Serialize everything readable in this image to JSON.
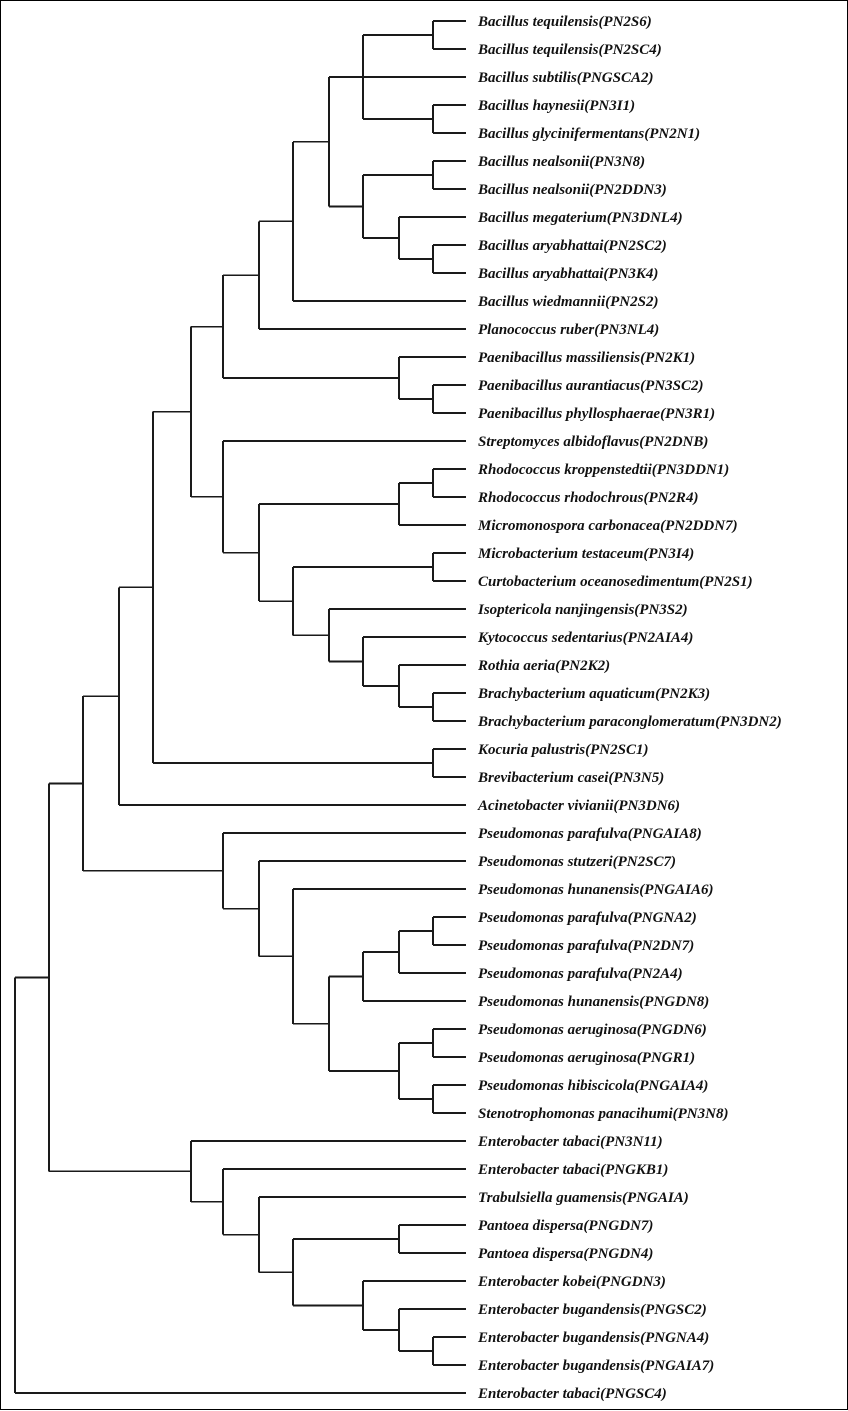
{
  "tree": {
    "leaves": [
      "Bacillus tequilensis(PN2S6)",
      "Bacillus tequilensis(PN2SC4)",
      "Bacillus subtilis(PNGSCA2)",
      "Bacillus haynesii(PN3I1)",
      "Bacillus glycinifermentans(PN2N1)",
      "Bacillus nealsonii(PN3N8)",
      "Bacillus nealsonii(PN2DDN3)",
      "Bacillus megaterium(PN3DNL4)",
      "Bacillus aryabhattai(PN2SC2)",
      "Bacillus aryabhattai(PN3K4)",
      "Bacillus wiedmannii(PN2S2)",
      "Planococcus ruber(PN3NL4)",
      "Paenibacillus massiliensis(PN2K1)",
      "Paenibacillus aurantiacus(PN3SC2)",
      "Paenibacillus phyllosphaerae(PN3R1)",
      "Streptomyces albidoflavus(PN2DNB)",
      "Rhodococcus kroppenstedtii(PN3DDN1)",
      "Rhodococcus rhodochrous(PN2R4)",
      "Micromonospora carbonacea(PN2DDN7)",
      "Microbacterium testaceum(PN3I4)",
      "Curtobacterium oceanosedimentum(PN2S1)",
      "Isoptericola nanjingensis(PN3S2)",
      "Kytococcus sedentarius(PN2AIA4)",
      "Rothia aeria(PN2K2)",
      "Brachybacterium aquaticum(PN2K3)",
      "Brachybacterium paraconglomeratum(PN3DN2)",
      "Kocuria palustris(PN2SC1)",
      "Brevibacterium casei(PN3N5)",
      "Acinetobacter vivianii(PN3DN6)",
      "Pseudomonas parafulva(PNGAIA8)",
      "Pseudomonas stutzeri(PN2SC7)",
      "Pseudomonas hunanensis(PNGAIA6)",
      "Pseudomonas parafulva(PNGNA2)",
      "Pseudomonas parafulva(PN2DN7)",
      "Pseudomonas parafulva(PN2A4)",
      "Pseudomonas hunanensis(PNGDN8)",
      "Pseudomonas aeruginosa(PNGDN6)",
      "Pseudomonas aeruginosa(PNGR1)",
      "Pseudomonas hibiscicola(PNGAIA4)",
      "Stenotrophomonas panacihumi(PN3N8)",
      "Enterobacter tabaci(PN3N11)",
      "Enterobacter tabaci(PNGKB1)",
      "Trabulsiella guamensis(PNGAIA)",
      "Pantoea dispersa(PNGDN7)",
      "Pantoea dispersa(PNGDN4)",
      "Enterobacter kobei(PNGDN3)",
      "Enterobacter bugandensis(PNGSC2)",
      "Enterobacter bugandensis(PNGNA4)",
      "Enterobacter bugandensis(PNGAIA7)",
      "Enterobacter tabaci(PNGSC4)"
    ]
  }
}
